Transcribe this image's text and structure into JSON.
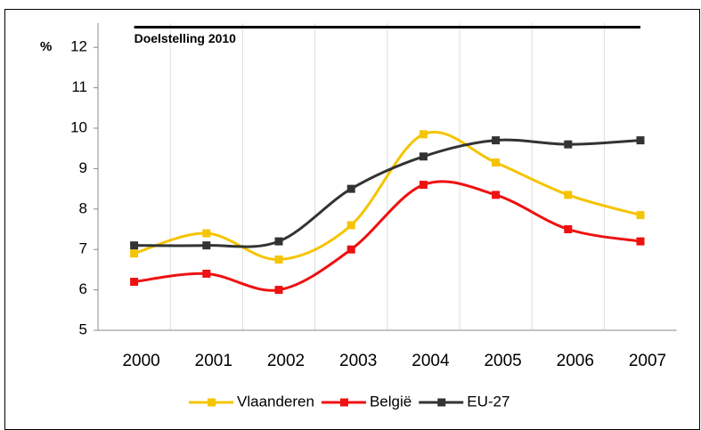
{
  "chart_data": {
    "type": "line",
    "categories": [
      "2000",
      "2001",
      "2002",
      "2003",
      "2004",
      "2005",
      "2006",
      "2007"
    ],
    "series": [
      {
        "name": "Vlaanderen",
        "color": "#f5c400",
        "values": [
          6.9,
          7.4,
          6.75,
          7.6,
          9.85,
          9.15,
          8.35,
          7.85
        ]
      },
      {
        "name": "België",
        "color": "#ee1111",
        "values": [
          6.2,
          6.4,
          6.0,
          7.0,
          8.6,
          8.35,
          7.5,
          7.2
        ]
      },
      {
        "name": "EU-27",
        "color": "#333333",
        "values": [
          7.1,
          7.1,
          7.2,
          8.5,
          9.3,
          9.7,
          9.6,
          9.7
        ]
      }
    ],
    "ylabel": "%",
    "ylim": [
      5,
      12.6
    ],
    "yticks": [
      5,
      6,
      7,
      8,
      9,
      10,
      11,
      12
    ],
    "annotation": {
      "text": "Doelstelling 2010",
      "value": 12.5
    },
    "legend": "bottom"
  }
}
